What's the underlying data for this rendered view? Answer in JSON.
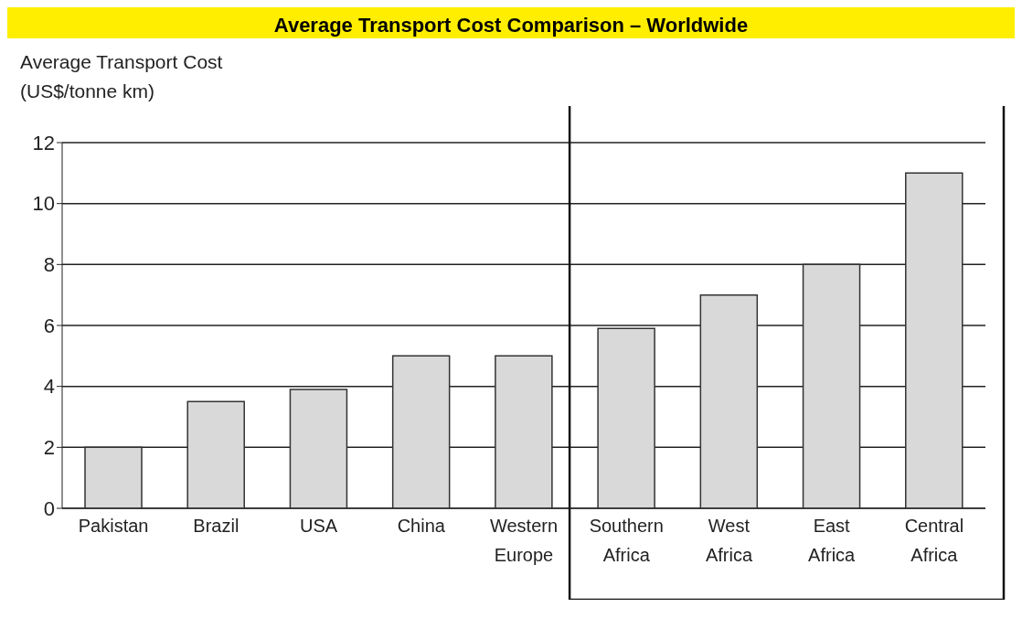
{
  "chart_data": {
    "type": "bar",
    "title": "Average Transport Cost Comparison – Worldwide",
    "ylabel": "Average Transport Cost (US$/tonne km)",
    "categories": [
      "Pakistan",
      "Brazil",
      "USA",
      "China",
      "Western Europe",
      "Southern Africa",
      "West Africa",
      "East Africa",
      "Central Africa"
    ],
    "values": [
      2,
      3.5,
      3.9,
      5,
      5,
      5.9,
      7,
      8,
      11
    ],
    "color": "#d9d9d9",
    "ylim": [
      0,
      12
    ],
    "yticks": [
      0,
      2,
      4,
      6,
      8,
      10,
      12
    ],
    "grid": "y"
  }
}
